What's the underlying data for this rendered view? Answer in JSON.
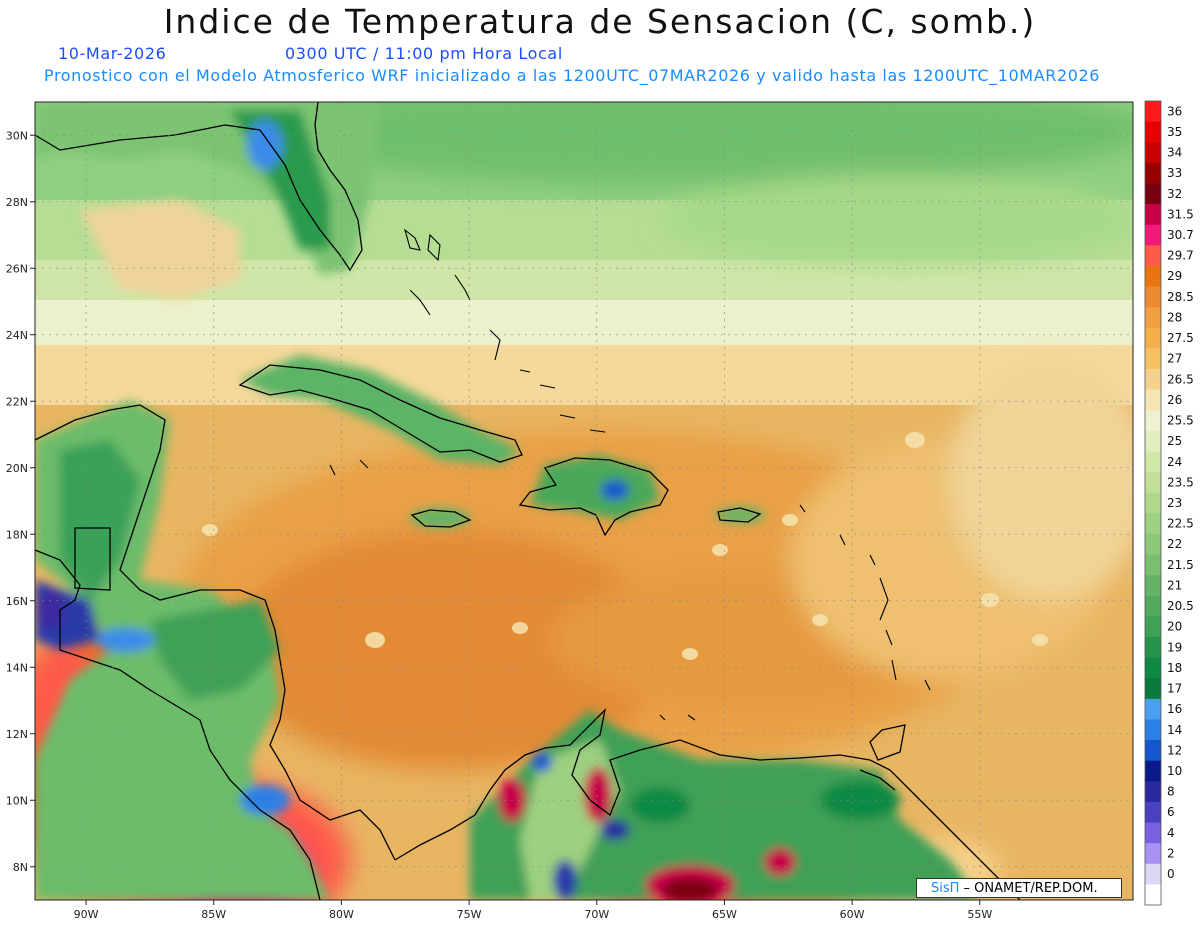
{
  "title": "Indice de Temperatura de Sensacion (C, somb.)",
  "date": "10-Mar-2026",
  "time": "0300 UTC / 11:00 pm Hora Local",
  "subtitle": "Pronostico con el Modelo Atmosferico WRF inicializado a las 1200UTC_07MAR2026 y valido hasta las  1200UTC_10MAR2026",
  "credit": {
    "logo": "SisΠ",
    "text": " – ONAMET/REP.DOM."
  },
  "map": {
    "lon_range": [
      -92,
      -49
    ],
    "lat_range": [
      7,
      31
    ],
    "lon_ticks": [
      {
        "value": -90,
        "label": "90W"
      },
      {
        "value": -85,
        "label": "85W"
      },
      {
        "value": -80,
        "label": "80W"
      },
      {
        "value": -75,
        "label": "75W"
      },
      {
        "value": -70,
        "label": "70W"
      },
      {
        "value": -65,
        "label": "65W"
      },
      {
        "value": -60,
        "label": "60W"
      },
      {
        "value": -55,
        "label": "55W"
      }
    ],
    "lat_ticks": [
      {
        "value": 30,
        "label": "30N"
      },
      {
        "value": 28,
        "label": "28N"
      },
      {
        "value": 26,
        "label": "26N"
      },
      {
        "value": 24,
        "label": "24N"
      },
      {
        "value": 22,
        "label": "22N"
      },
      {
        "value": 20,
        "label": "20N"
      },
      {
        "value": 18,
        "label": "18N"
      },
      {
        "value": 16,
        "label": "16N"
      },
      {
        "value": 14,
        "label": "14N"
      },
      {
        "value": 12,
        "label": "12N"
      },
      {
        "value": 10,
        "label": "10N"
      },
      {
        "value": 8,
        "label": "8N"
      }
    ]
  },
  "colorbar": {
    "levels": [
      {
        "label": "36",
        "color": "#ff1a1a"
      },
      {
        "label": "35",
        "color": "#e60000"
      },
      {
        "label": "34",
        "color": "#c80000"
      },
      {
        "label": "33",
        "color": "#990000"
      },
      {
        "label": "32",
        "color": "#7a0010"
      },
      {
        "label": "31.5",
        "color": "#c8004a"
      },
      {
        "label": "30.7",
        "color": "#f01a78"
      },
      {
        "label": "29.7",
        "color": "#ff5a4a"
      },
      {
        "label": "29",
        "color": "#e87512"
      },
      {
        "label": "28.5",
        "color": "#f08a32"
      },
      {
        "label": "28",
        "color": "#f0a040"
      },
      {
        "label": "27.5",
        "color": "#f5b04c"
      },
      {
        "label": "27",
        "color": "#f7c060"
      },
      {
        "label": "26.5",
        "color": "#f5d28c"
      },
      {
        "label": "26",
        "color": "#f5e5b0"
      },
      {
        "label": "25.5",
        "color": "#f0f0d2"
      },
      {
        "label": "25",
        "color": "#e0eec0"
      },
      {
        "label": "24",
        "color": "#d0e8a8"
      },
      {
        "label": "23.5",
        "color": "#bfe096"
      },
      {
        "label": "23",
        "color": "#aed88a"
      },
      {
        "label": "22.5",
        "color": "#9dd080"
      },
      {
        "label": "22",
        "color": "#8cc878"
      },
      {
        "label": "21.5",
        "color": "#78bf70"
      },
      {
        "label": "21",
        "color": "#64b466"
      },
      {
        "label": "20.5",
        "color": "#52aa5e"
      },
      {
        "label": "20",
        "color": "#40a056"
      },
      {
        "label": "19",
        "color": "#24944c"
      },
      {
        "label": "18",
        "color": "#0f8a44"
      },
      {
        "label": "17",
        "color": "#0a7a3c"
      },
      {
        "label": "16",
        "color": "#4aa0f0"
      },
      {
        "label": "14",
        "color": "#2a80e8"
      },
      {
        "label": "12",
        "color": "#1456d0"
      },
      {
        "label": "10",
        "color": "#0a1a8c"
      },
      {
        "label": "8",
        "color": "#2a2aa0"
      },
      {
        "label": "6",
        "color": "#4a40c0"
      },
      {
        "label": "4",
        "color": "#7860e0"
      },
      {
        "label": "2",
        "color": "#a890f5"
      },
      {
        "label": "0",
        "color": "#dcd8f8"
      },
      {
        "label": "",
        "color": "#ffffff"
      }
    ]
  }
}
